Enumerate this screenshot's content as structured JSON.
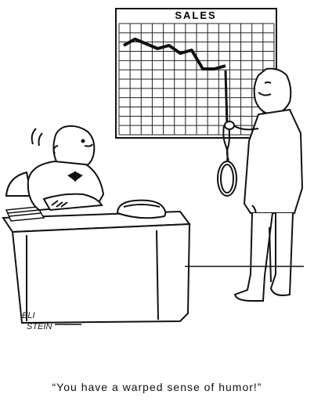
{
  "chart": {
    "label": "SALES",
    "line_values": [
      5.2,
      6.0,
      5.4,
      4.8,
      5.2,
      4.2,
      4.6,
      2.2,
      2.2,
      2.6
    ]
  },
  "signature": "ELI STEIN",
  "caption": "“You have a warped sense of humor!”",
  "colors": {
    "ink": "#111111",
    "paper": "#ffffff",
    "grid": "#222222"
  }
}
